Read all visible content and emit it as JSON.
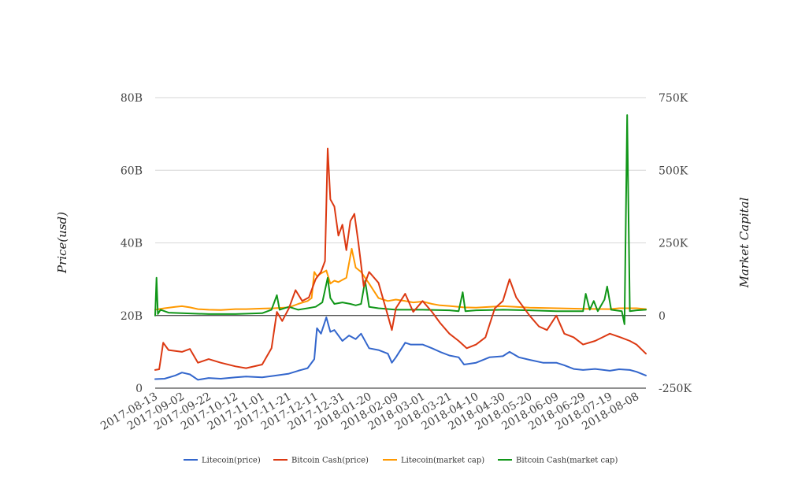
{
  "chart_data": {
    "type": "line",
    "title": "",
    "ylabel_left": "Price(usd)",
    "ylabel_right": "Market Capital",
    "left_axis": {
      "ylim": [
        0,
        80
      ],
      "ticks": [
        0,
        20,
        40,
        60,
        80
      ],
      "tick_labels": [
        "0",
        "20B",
        "40B",
        "60B",
        "80B"
      ]
    },
    "right_axis": {
      "ylim": [
        -250000,
        750000
      ],
      "ticks": [
        -250000,
        0,
        250000,
        500000,
        750000
      ],
      "tick_labels": [
        "-250K",
        "0",
        "250K",
        "500K",
        "750K"
      ]
    },
    "x_tick_labels": [
      "2017-08-13",
      "2017-09-02",
      "2017-09-22",
      "2017-10-12",
      "2017-11-01",
      "2017-11-21",
      "2017-12-11",
      "2017-12-31",
      "2018-01-20",
      "2018-02-09",
      "2018-03-01",
      "2018-03-21",
      "2018-04-10",
      "2018-04-30",
      "2018-05-20",
      "2018-06-09",
      "2018-06-29",
      "2018-07-19",
      "2018-08-08"
    ],
    "x_range": [
      "2017-08-13",
      "2018-08-15"
    ],
    "grid": true,
    "legend_position": "bottom",
    "series": [
      {
        "name": "Litecoin(price)",
        "axis": "left",
        "color": "#3366cc",
        "points": [
          [
            "2017-08-13",
            2.5
          ],
          [
            "2017-08-20",
            2.6
          ],
          [
            "2017-08-28",
            3.5
          ],
          [
            "2017-09-02",
            4.3
          ],
          [
            "2017-09-08",
            3.8
          ],
          [
            "2017-09-14",
            2.3
          ],
          [
            "2017-09-22",
            2.8
          ],
          [
            "2017-10-01",
            2.6
          ],
          [
            "2017-10-12",
            3.0
          ],
          [
            "2017-10-20",
            3.2
          ],
          [
            "2017-11-01",
            3.0
          ],
          [
            "2017-11-10",
            3.4
          ],
          [
            "2017-11-21",
            4.0
          ],
          [
            "2017-11-28",
            4.8
          ],
          [
            "2017-12-05",
            5.5
          ],
          [
            "2017-12-10",
            8.0
          ],
          [
            "2017-12-12",
            16.5
          ],
          [
            "2017-12-15",
            15.0
          ],
          [
            "2017-12-19",
            19.5
          ],
          [
            "2017-12-22",
            15.5
          ],
          [
            "2017-12-25",
            16.0
          ],
          [
            "2017-12-31",
            13.0
          ],
          [
            "2018-01-05",
            14.5
          ],
          [
            "2018-01-10",
            13.5
          ],
          [
            "2018-01-14",
            15.0
          ],
          [
            "2018-01-20",
            11.0
          ],
          [
            "2018-01-27",
            10.5
          ],
          [
            "2018-02-03",
            9.5
          ],
          [
            "2018-02-06",
            7.0
          ],
          [
            "2018-02-09",
            8.5
          ],
          [
            "2018-02-16",
            12.5
          ],
          [
            "2018-02-20",
            12.0
          ],
          [
            "2018-03-01",
            12.0
          ],
          [
            "2018-03-08",
            11.0
          ],
          [
            "2018-03-14",
            10.0
          ],
          [
            "2018-03-21",
            9.0
          ],
          [
            "2018-03-28",
            8.5
          ],
          [
            "2018-04-01",
            6.5
          ],
          [
            "2018-04-10",
            7.0
          ],
          [
            "2018-04-20",
            8.5
          ],
          [
            "2018-04-30",
            8.8
          ],
          [
            "2018-05-05",
            10.0
          ],
          [
            "2018-05-12",
            8.5
          ],
          [
            "2018-05-20",
            7.8
          ],
          [
            "2018-05-30",
            7.0
          ],
          [
            "2018-06-09",
            7.0
          ],
          [
            "2018-06-15",
            6.3
          ],
          [
            "2018-06-22",
            5.3
          ],
          [
            "2018-06-29",
            5.0
          ],
          [
            "2018-07-08",
            5.3
          ],
          [
            "2018-07-19",
            4.8
          ],
          [
            "2018-07-26",
            5.2
          ],
          [
            "2018-08-03",
            5.0
          ],
          [
            "2018-08-08",
            4.5
          ],
          [
            "2018-08-15",
            3.5
          ]
        ]
      },
      {
        "name": "Bitcoin Cash(price)",
        "axis": "left",
        "color": "#dc3912",
        "points": [
          [
            "2017-08-13",
            5.0
          ],
          [
            "2017-08-16",
            5.2
          ],
          [
            "2017-08-19",
            12.5
          ],
          [
            "2017-08-23",
            10.5
          ],
          [
            "2017-09-02",
            10.0
          ],
          [
            "2017-09-08",
            10.8
          ],
          [
            "2017-09-14",
            7.0
          ],
          [
            "2017-09-22",
            8.0
          ],
          [
            "2017-10-01",
            7.0
          ],
          [
            "2017-10-12",
            6.0
          ],
          [
            "2017-10-20",
            5.5
          ],
          [
            "2017-11-01",
            6.5
          ],
          [
            "2017-11-08",
            11.0
          ],
          [
            "2017-11-12",
            21.0
          ],
          [
            "2017-11-16",
            18.5
          ],
          [
            "2017-11-21",
            22.0
          ],
          [
            "2017-11-26",
            27.0
          ],
          [
            "2017-12-01",
            24.0
          ],
          [
            "2017-12-06",
            25.0
          ],
          [
            "2017-12-11",
            30.0
          ],
          [
            "2017-12-15",
            32.0
          ],
          [
            "2017-12-18",
            35.0
          ],
          [
            "2017-12-20",
            66.0
          ],
          [
            "2017-12-22",
            52.0
          ],
          [
            "2017-12-25",
            50.0
          ],
          [
            "2017-12-28",
            42.0
          ],
          [
            "2017-12-31",
            45.0
          ],
          [
            "2018-01-03",
            38.0
          ],
          [
            "2018-01-06",
            46.0
          ],
          [
            "2018-01-09",
            48.0
          ],
          [
            "2018-01-12",
            40.0
          ],
          [
            "2018-01-16",
            28.0
          ],
          [
            "2018-01-20",
            32.0
          ],
          [
            "2018-01-27",
            29.0
          ],
          [
            "2018-02-03",
            20.0
          ],
          [
            "2018-02-06",
            16.0
          ],
          [
            "2018-02-09",
            22.0
          ],
          [
            "2018-02-16",
            26.0
          ],
          [
            "2018-02-22",
            21.0
          ],
          [
            "2018-03-01",
            24.0
          ],
          [
            "2018-03-08",
            21.0
          ],
          [
            "2018-03-14",
            18.0
          ],
          [
            "2018-03-21",
            15.0
          ],
          [
            "2018-03-28",
            13.0
          ],
          [
            "2018-04-03",
            11.0
          ],
          [
            "2018-04-10",
            12.0
          ],
          [
            "2018-04-17",
            14.0
          ],
          [
            "2018-04-24",
            22.0
          ],
          [
            "2018-04-30",
            24.0
          ],
          [
            "2018-05-05",
            30.0
          ],
          [
            "2018-05-10",
            25.0
          ],
          [
            "2018-05-20",
            20.0
          ],
          [
            "2018-05-27",
            17.0
          ],
          [
            "2018-06-02",
            16.0
          ],
          [
            "2018-06-09",
            20.0
          ],
          [
            "2018-06-15",
            15.0
          ],
          [
            "2018-06-22",
            14.0
          ],
          [
            "2018-06-29",
            12.0
          ],
          [
            "2018-07-08",
            13.0
          ],
          [
            "2018-07-19",
            15.0
          ],
          [
            "2018-07-27",
            14.0
          ],
          [
            "2018-08-03",
            13.0
          ],
          [
            "2018-08-08",
            12.0
          ],
          [
            "2018-08-15",
            9.5
          ]
        ]
      },
      {
        "name": "Litecoin(market cap)",
        "axis": "right",
        "color": "#ff9900",
        "points": [
          [
            "2017-08-13",
            20000
          ],
          [
            "2017-08-20",
            25000
          ],
          [
            "2017-08-28",
            30000
          ],
          [
            "2017-09-02",
            32000
          ],
          [
            "2017-09-08",
            28000
          ],
          [
            "2017-09-14",
            22000
          ],
          [
            "2017-09-22",
            20000
          ],
          [
            "2017-10-01",
            19000
          ],
          [
            "2017-10-12",
            22000
          ],
          [
            "2017-10-20",
            22000
          ],
          [
            "2017-11-01",
            24000
          ],
          [
            "2017-11-10",
            25000
          ],
          [
            "2017-11-21",
            28000
          ],
          [
            "2017-11-28",
            40000
          ],
          [
            "2017-12-05",
            50000
          ],
          [
            "2017-12-08",
            60000
          ],
          [
            "2017-12-10",
            150000
          ],
          [
            "2017-12-12",
            135000
          ],
          [
            "2017-12-15",
            145000
          ],
          [
            "2017-12-19",
            155000
          ],
          [
            "2017-12-22",
            110000
          ],
          [
            "2017-12-25",
            120000
          ],
          [
            "2017-12-28",
            115000
          ],
          [
            "2018-01-03",
            130000
          ],
          [
            "2018-01-07",
            230000
          ],
          [
            "2018-01-10",
            165000
          ],
          [
            "2018-01-14",
            150000
          ],
          [
            "2018-01-20",
            110000
          ],
          [
            "2018-01-27",
            60000
          ],
          [
            "2018-02-03",
            50000
          ],
          [
            "2018-02-09",
            55000
          ],
          [
            "2018-02-16",
            50000
          ],
          [
            "2018-02-22",
            45000
          ],
          [
            "2018-03-01",
            48000
          ],
          [
            "2018-03-08",
            40000
          ],
          [
            "2018-03-14",
            35000
          ],
          [
            "2018-03-21",
            33000
          ],
          [
            "2018-04-01",
            28000
          ],
          [
            "2018-04-10",
            27000
          ],
          [
            "2018-04-20",
            30000
          ],
          [
            "2018-04-30",
            32000
          ],
          [
            "2018-05-10",
            30000
          ],
          [
            "2018-05-20",
            27000
          ],
          [
            "2018-06-09",
            25000
          ],
          [
            "2018-06-29",
            23000
          ],
          [
            "2018-07-19",
            22000
          ],
          [
            "2018-07-26",
            25000
          ],
          [
            "2018-08-08",
            25000
          ],
          [
            "2018-08-15",
            22000
          ]
        ]
      },
      {
        "name": "Bitcoin Cash(market cap)",
        "axis": "right",
        "color": "#109618",
        "points": [
          [
            "2017-08-13",
            0
          ],
          [
            "2017-08-14",
            130000
          ],
          [
            "2017-08-15",
            5000
          ],
          [
            "2017-08-17",
            20000
          ],
          [
            "2017-08-23",
            10000
          ],
          [
            "2017-09-02",
            8000
          ],
          [
            "2017-09-22",
            5000
          ],
          [
            "2017-10-12",
            5000
          ],
          [
            "2017-11-01",
            8000
          ],
          [
            "2017-11-08",
            20000
          ],
          [
            "2017-11-12",
            70000
          ],
          [
            "2017-11-14",
            20000
          ],
          [
            "2017-11-21",
            30000
          ],
          [
            "2017-11-28",
            20000
          ],
          [
            "2017-12-05",
            25000
          ],
          [
            "2017-12-11",
            30000
          ],
          [
            "2017-12-16",
            45000
          ],
          [
            "2017-12-20",
            130000
          ],
          [
            "2017-12-22",
            60000
          ],
          [
            "2017-12-25",
            40000
          ],
          [
            "2017-12-31",
            45000
          ],
          [
            "2018-01-06",
            40000
          ],
          [
            "2018-01-10",
            35000
          ],
          [
            "2018-01-14",
            40000
          ],
          [
            "2018-01-17",
            120000
          ],
          [
            "2018-01-20",
            30000
          ],
          [
            "2018-01-27",
            25000
          ],
          [
            "2018-02-09",
            20000
          ],
          [
            "2018-03-01",
            20000
          ],
          [
            "2018-03-21",
            18000
          ],
          [
            "2018-03-28",
            15000
          ],
          [
            "2018-03-31",
            80000
          ],
          [
            "2018-04-02",
            15000
          ],
          [
            "2018-04-10",
            18000
          ],
          [
            "2018-04-30",
            20000
          ],
          [
            "2018-05-20",
            18000
          ],
          [
            "2018-06-09",
            15000
          ],
          [
            "2018-06-29",
            15000
          ],
          [
            "2018-07-01",
            75000
          ],
          [
            "2018-07-04",
            20000
          ],
          [
            "2018-07-07",
            50000
          ],
          [
            "2018-07-10",
            15000
          ],
          [
            "2018-07-15",
            55000
          ],
          [
            "2018-07-17",
            100000
          ],
          [
            "2018-07-20",
            20000
          ],
          [
            "2018-07-28",
            15000
          ],
          [
            "2018-07-30",
            -30000
          ],
          [
            "2018-08-01",
            690000
          ],
          [
            "2018-08-03",
            15000
          ],
          [
            "2018-08-08",
            18000
          ],
          [
            "2018-08-15",
            20000
          ]
        ]
      }
    ]
  }
}
